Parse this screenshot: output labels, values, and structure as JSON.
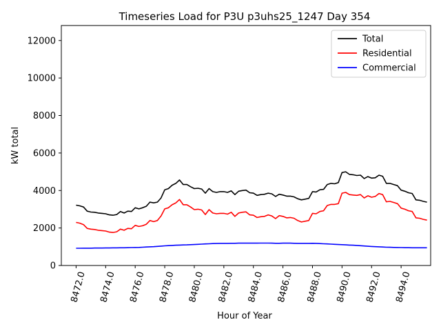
{
  "chart_data": {
    "type": "line",
    "title": "Timeseries Load for P3U p3uhs25_1247  Day 354",
    "xlabel": "Hour of Year",
    "ylabel": "kW total",
    "xlim": [
      8471.0,
      8496.0
    ],
    "ylim": [
      0,
      12800
    ],
    "x_ticks": [
      8472,
      8474,
      8476,
      8478,
      8480,
      8482,
      8484,
      8486,
      8488,
      8490,
      8492,
      8494
    ],
    "x_tick_labels": [
      "8472.0",
      "8474.0",
      "8476.0",
      "8478.0",
      "8480.0",
      "8482.0",
      "8484.0",
      "8486.0",
      "8488.0",
      "8490.0",
      "8492.0",
      "8494.0"
    ],
    "y_ticks": [
      0,
      2000,
      4000,
      6000,
      8000,
      10000,
      12000
    ],
    "y_tick_labels": [
      "0",
      "2000",
      "4000",
      "6000",
      "8000",
      "10000",
      "12000"
    ],
    "legend_position": "top-right",
    "x": [
      8472.0,
      8472.25,
      8472.5,
      8472.75,
      8473.0,
      8473.25,
      8473.5,
      8473.75,
      8474.0,
      8474.25,
      8474.5,
      8474.75,
      8475.0,
      8475.25,
      8475.5,
      8475.75,
      8476.0,
      8476.25,
      8476.5,
      8476.75,
      8477.0,
      8477.25,
      8477.5,
      8477.75,
      8478.0,
      8478.25,
      8478.5,
      8478.75,
      8479.0,
      8479.25,
      8479.5,
      8479.75,
      8480.0,
      8480.25,
      8480.5,
      8480.75,
      8481.0,
      8481.25,
      8481.5,
      8481.75,
      8482.0,
      8482.25,
      8482.5,
      8482.75,
      8483.0,
      8483.25,
      8483.5,
      8483.75,
      8484.0,
      8484.25,
      8484.5,
      8484.75,
      8485.0,
      8485.25,
      8485.5,
      8485.75,
      8486.0,
      8486.25,
      8486.5,
      8486.75,
      8487.0,
      8487.25,
      8487.5,
      8487.75,
      8488.0,
      8488.25,
      8488.5,
      8488.75,
      8489.0,
      8489.25,
      8489.5,
      8489.75,
      8490.0,
      8490.25,
      8490.5,
      8490.75,
      8491.0,
      8491.25,
      8491.5,
      8491.75,
      8492.0,
      8492.25,
      8492.5,
      8492.75,
      8493.0,
      8493.25,
      8493.5,
      8493.75,
      8494.0,
      8494.25,
      8494.5,
      8494.75,
      8495.0,
      8495.25,
      8495.5,
      8495.75
    ],
    "series": [
      {
        "name": "Total",
        "color": "#000000",
        "values": [
          3220,
          3180,
          3120,
          2900,
          2850,
          2840,
          2800,
          2780,
          2760,
          2700,
          2680,
          2720,
          2880,
          2800,
          2900,
          2880,
          3080,
          3020,
          3080,
          3160,
          3380,
          3340,
          3380,
          3600,
          4040,
          4100,
          4280,
          4380,
          4560,
          4320,
          4320,
          4200,
          4100,
          4120,
          4080,
          3860,
          4100,
          3940,
          3900,
          3940,
          3940,
          3900,
          3980,
          3780,
          3960,
          4000,
          4020,
          3880,
          3860,
          3740,
          3780,
          3800,
          3860,
          3820,
          3680,
          3800,
          3760,
          3700,
          3700,
          3660,
          3560,
          3500,
          3540,
          3580,
          3940,
          3920,
          4040,
          4060,
          4320,
          4380,
          4360,
          4420,
          4960,
          5000,
          4860,
          4840,
          4800,
          4820,
          4640,
          4740,
          4660,
          4680,
          4820,
          4760,
          4380,
          4380,
          4320,
          4260,
          4020,
          3960,
          3880,
          3840,
          3500,
          3480,
          3420,
          3380
        ]
      },
      {
        "name": "Residential",
        "color": "#ff0000",
        "values": [
          2300,
          2260,
          2180,
          1980,
          1940,
          1920,
          1880,
          1860,
          1840,
          1780,
          1760,
          1800,
          1940,
          1880,
          1980,
          1960,
          2140,
          2080,
          2120,
          2200,
          2400,
          2340,
          2400,
          2640,
          3020,
          3080,
          3240,
          3340,
          3520,
          3240,
          3240,
          3120,
          2980,
          3000,
          2960,
          2720,
          2980,
          2800,
          2760,
          2780,
          2780,
          2740,
          2840,
          2620,
          2800,
          2840,
          2860,
          2700,
          2680,
          2560,
          2600,
          2620,
          2700,
          2640,
          2500,
          2660,
          2620,
          2540,
          2560,
          2520,
          2400,
          2320,
          2360,
          2400,
          2780,
          2760,
          2880,
          2920,
          3200,
          3260,
          3260,
          3300,
          3860,
          3900,
          3780,
          3760,
          3740,
          3780,
          3600,
          3720,
          3640,
          3680,
          3840,
          3780,
          3400,
          3420,
          3360,
          3300,
          3060,
          3000,
          2920,
          2880,
          2540,
          2520,
          2460,
          2420
        ]
      },
      {
        "name": "Commercial",
        "color": "#0000ff",
        "values": [
          920,
          920,
          925,
          925,
          925,
          930,
          930,
          930,
          935,
          935,
          940,
          940,
          945,
          945,
          950,
          955,
          960,
          965,
          975,
          985,
          995,
          1005,
          1020,
          1035,
          1050,
          1060,
          1070,
          1080,
          1090,
          1095,
          1100,
          1110,
          1120,
          1130,
          1140,
          1150,
          1160,
          1170,
          1175,
          1180,
          1180,
          1180,
          1185,
          1185,
          1190,
          1190,
          1190,
          1190,
          1190,
          1190,
          1195,
          1195,
          1195,
          1190,
          1185,
          1185,
          1190,
          1195,
          1190,
          1185,
          1180,
          1180,
          1180,
          1180,
          1185,
          1180,
          1170,
          1160,
          1150,
          1140,
          1130,
          1120,
          1110,
          1100,
          1090,
          1080,
          1070,
          1055,
          1040,
          1025,
          1015,
          1005,
          995,
          985,
          975,
          970,
          965,
          960,
          955,
          950,
          950,
          945,
          945,
          945,
          945,
          945
        ]
      }
    ]
  }
}
